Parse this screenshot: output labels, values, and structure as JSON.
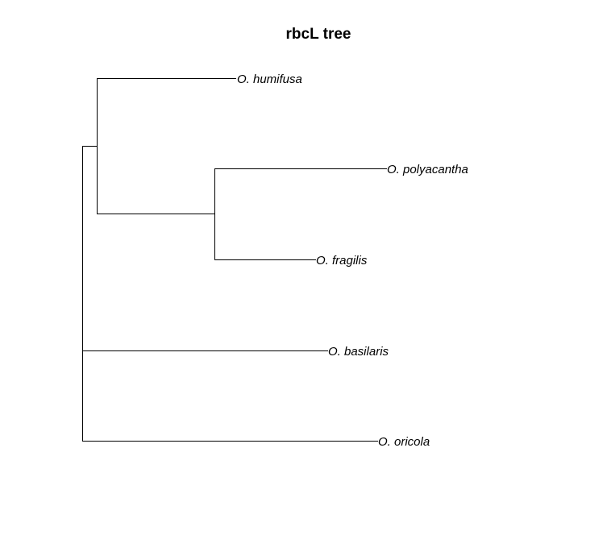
{
  "tree": {
    "title": "rbcL tree",
    "line_color": "#000000",
    "nodes": [
      {
        "id": "root"
      },
      {
        "id": "n1",
        "parent": "root"
      },
      {
        "id": "n2",
        "parent": "n1"
      },
      {
        "id": "t1",
        "parent": "n1",
        "label": "O. humifusa"
      },
      {
        "id": "t2",
        "parent": "n2",
        "label": "O. polyacantha"
      },
      {
        "id": "t3",
        "parent": "n2",
        "label": "O. fragilis"
      },
      {
        "id": "t4",
        "parent": "root",
        "label": "O. basilaris"
      },
      {
        "id": "t5",
        "parent": "root",
        "label": "O. oricola"
      }
    ]
  }
}
